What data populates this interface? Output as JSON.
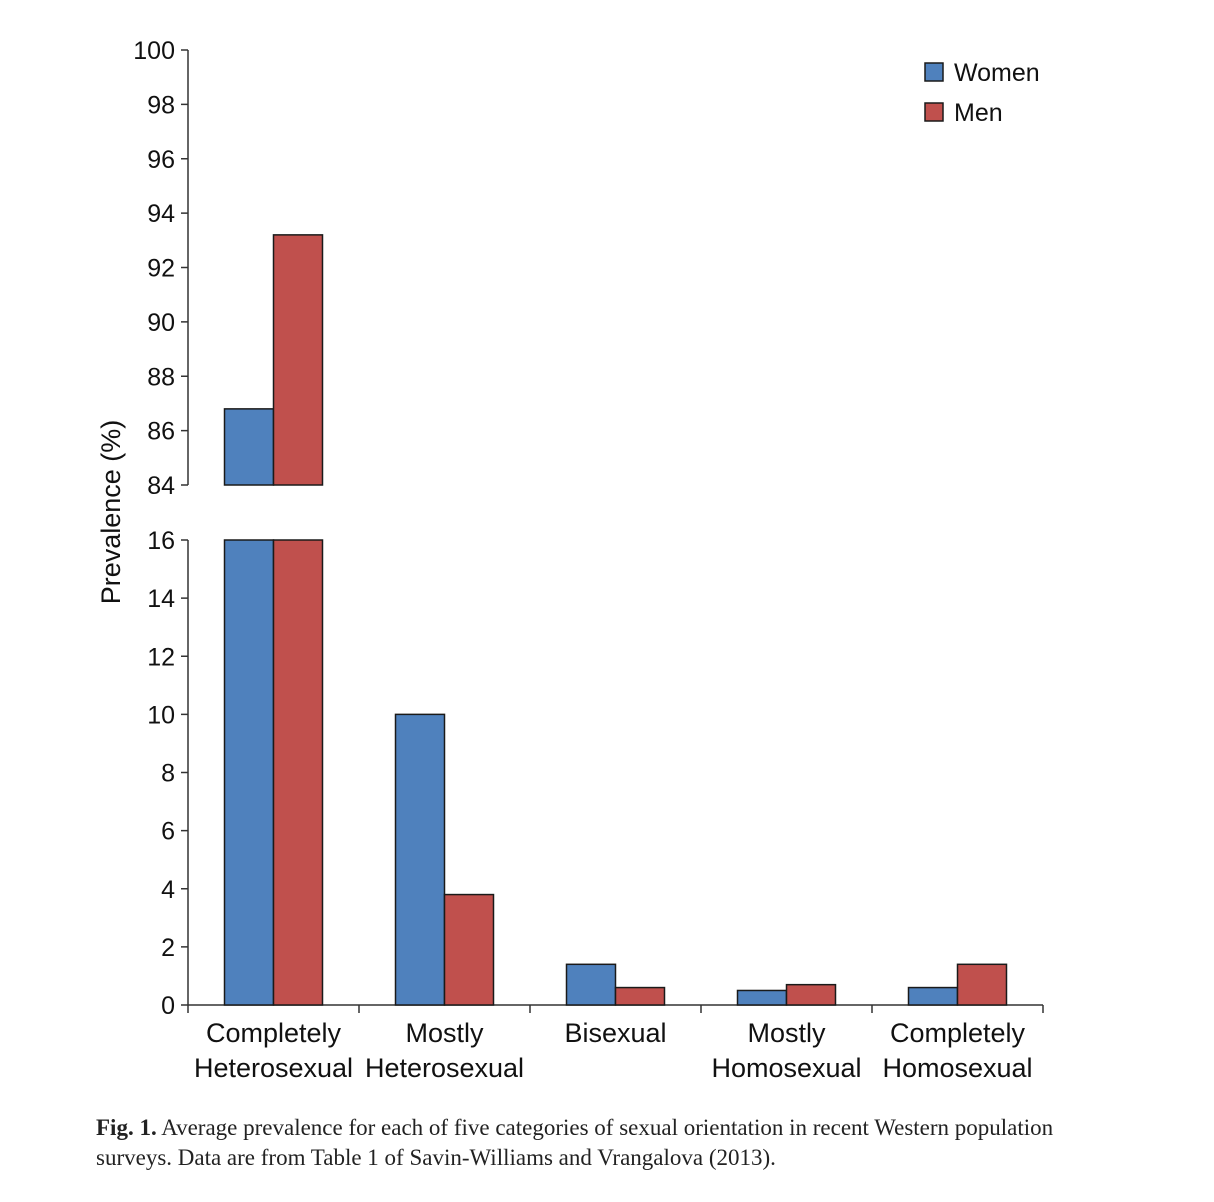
{
  "chart_data": {
    "type": "bar",
    "ylabel": "Prevalence (%)",
    "xlabel": "",
    "axis_break": {
      "lower_range": [
        0,
        16
      ],
      "upper_range": [
        84,
        100
      ]
    },
    "yticks_lower": [
      "0",
      "2",
      "4",
      "6",
      "8",
      "10",
      "12",
      "14",
      "16"
    ],
    "yticks_upper": [
      "84",
      "86",
      "88",
      "90",
      "92",
      "94",
      "96",
      "98",
      "100"
    ],
    "categories": [
      [
        "Completely",
        "Heterosexual"
      ],
      [
        "Mostly",
        "Heterosexual"
      ],
      [
        "Bisexual"
      ],
      [
        "Mostly",
        "Homosexual"
      ],
      [
        "Completely",
        "Homosexual"
      ]
    ],
    "series": [
      {
        "name": "Women",
        "color": "#4f81bd",
        "values": [
          86.8,
          10.0,
          1.4,
          0.5,
          0.6
        ]
      },
      {
        "name": "Men",
        "color": "#c0504d",
        "values": [
          93.2,
          3.8,
          0.6,
          0.7,
          1.4
        ]
      }
    ],
    "legend_position": "top-right"
  },
  "caption": {
    "label": "Fig. 1.",
    "text": "Average prevalence for each of five categories of sexual orientation in recent Western population surveys. Data are from Table 1 of Savin-Williams and Vrangalova (2013)."
  }
}
